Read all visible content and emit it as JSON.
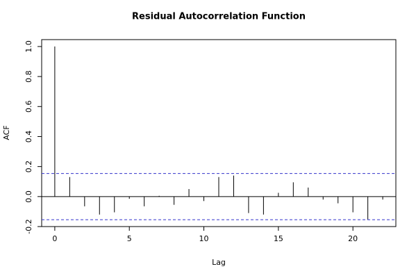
{
  "chart_data": {
    "type": "acf",
    "title": "Residual Autocorrelation Function",
    "x_label": "Lag",
    "y_label": "ACF",
    "x": [
      0,
      1,
      2,
      3,
      4,
      5,
      6,
      7,
      8,
      9,
      10,
      11,
      12,
      13,
      14,
      15,
      16,
      17,
      18,
      19,
      20,
      21,
      22
    ],
    "values": [
      1.0,
      0.13,
      -0.065,
      -0.12,
      -0.105,
      -0.015,
      -0.065,
      0.005,
      -0.055,
      0.05,
      -0.03,
      0.13,
      0.14,
      -0.11,
      -0.12,
      0.025,
      0.095,
      0.06,
      -0.02,
      -0.045,
      -0.105,
      -0.155,
      -0.02
    ],
    "color": "#000000",
    "confidence_bounds": [
      0.154,
      -0.154
    ],
    "confidence_color": "#3333cc",
    "xlim": [
      -0.88,
      22.88
    ],
    "xticks": [
      0,
      5,
      10,
      15,
      20
    ],
    "ylim": [
      -0.2,
      1.046
    ],
    "yticks": [
      -0.2,
      {
        "value": 0,
        "label": "0.0"
      },
      0.2,
      0.4,
      0.6,
      0.8,
      {
        "value": 1,
        "label": "1.0"
      }
    ]
  }
}
